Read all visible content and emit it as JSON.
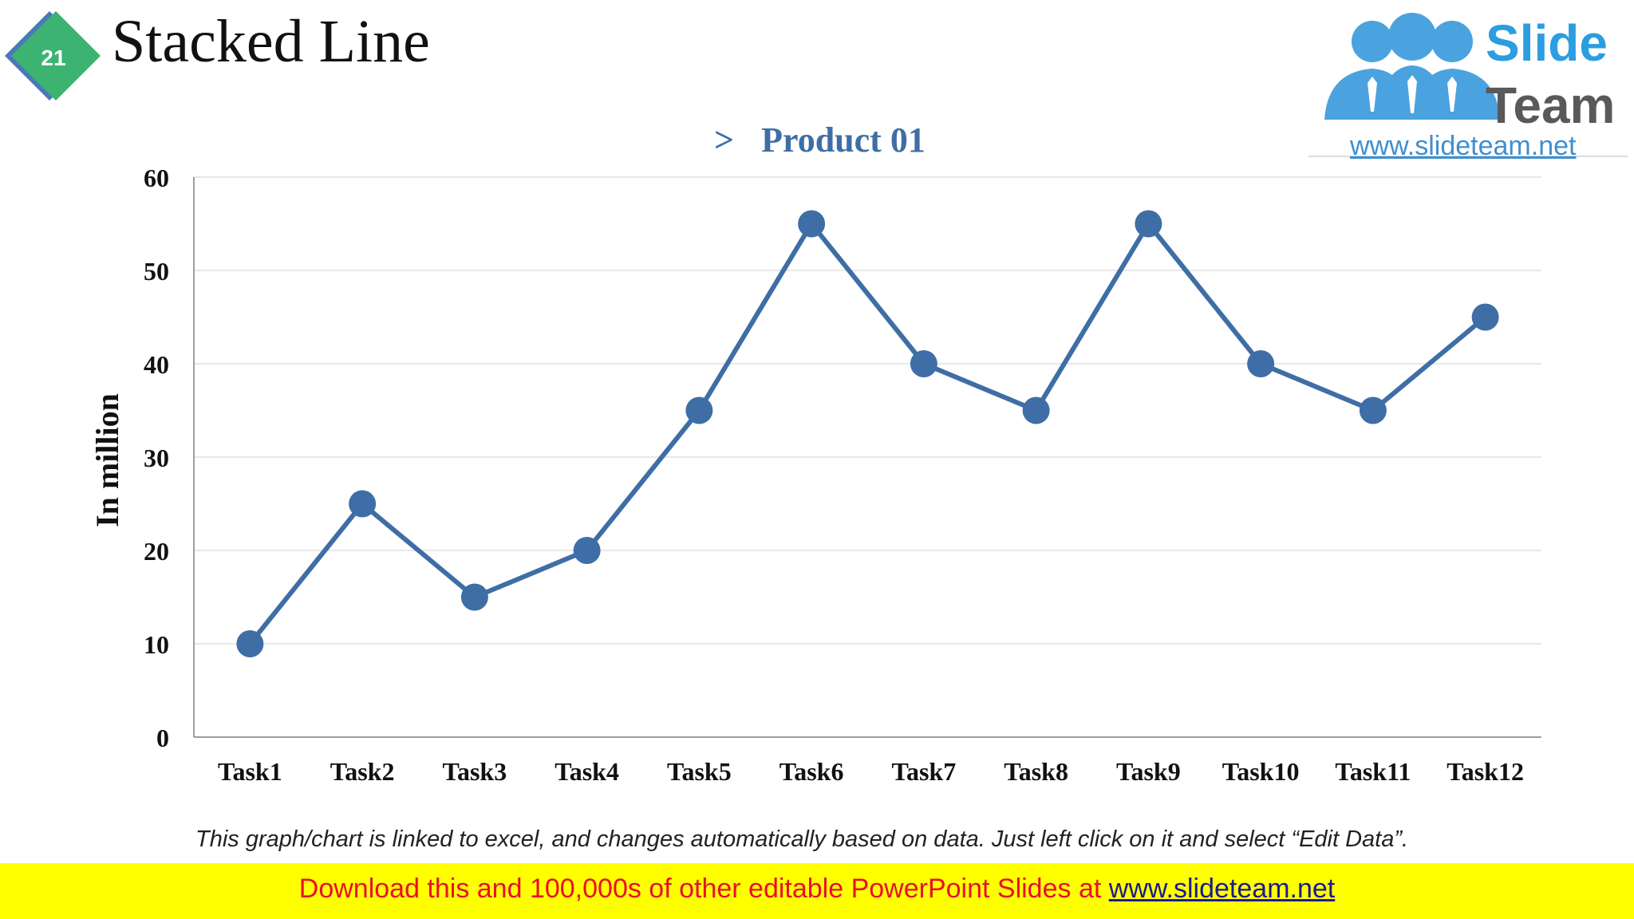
{
  "slide": {
    "number": "21",
    "title": "Stacked Line",
    "badge_color": "#3cb371",
    "badge_shadow_color": "#4a78b8"
  },
  "logo": {
    "word1": "Slide",
    "word2": "Team",
    "url": "www.slideteam.net",
    "people_color": "#4aa3df"
  },
  "chart_data": {
    "type": "line",
    "categories": [
      "Task1",
      "Task2",
      "Task3",
      "Task4",
      "Task5",
      "Task6",
      "Task7",
      "Task8",
      "Task9",
      "Task10",
      "Task11",
      "Task12"
    ],
    "series": [
      {
        "name": "Product 01",
        "values": [
          10,
          25,
          15,
          20,
          35,
          55,
          40,
          35,
          55,
          40,
          35,
          45
        ],
        "color": "#3e6ea5"
      }
    ],
    "title": "",
    "xlabel": "",
    "ylabel": "In million",
    "ylim": [
      0,
      60
    ],
    "yticks": [
      "0",
      "10",
      "20",
      "30",
      "40",
      "50",
      "60"
    ],
    "grid": true,
    "legend_position": "top-center",
    "legend_marker": ">"
  },
  "note": "This graph/chart is linked to excel, and changes automatically based on data. Just left click on it and select “Edit Data”.",
  "banner": {
    "text": "Download this and 100,000s of other editable PowerPoint Slides at ",
    "link": "www.slideteam.net",
    "background": "#ffff00"
  }
}
